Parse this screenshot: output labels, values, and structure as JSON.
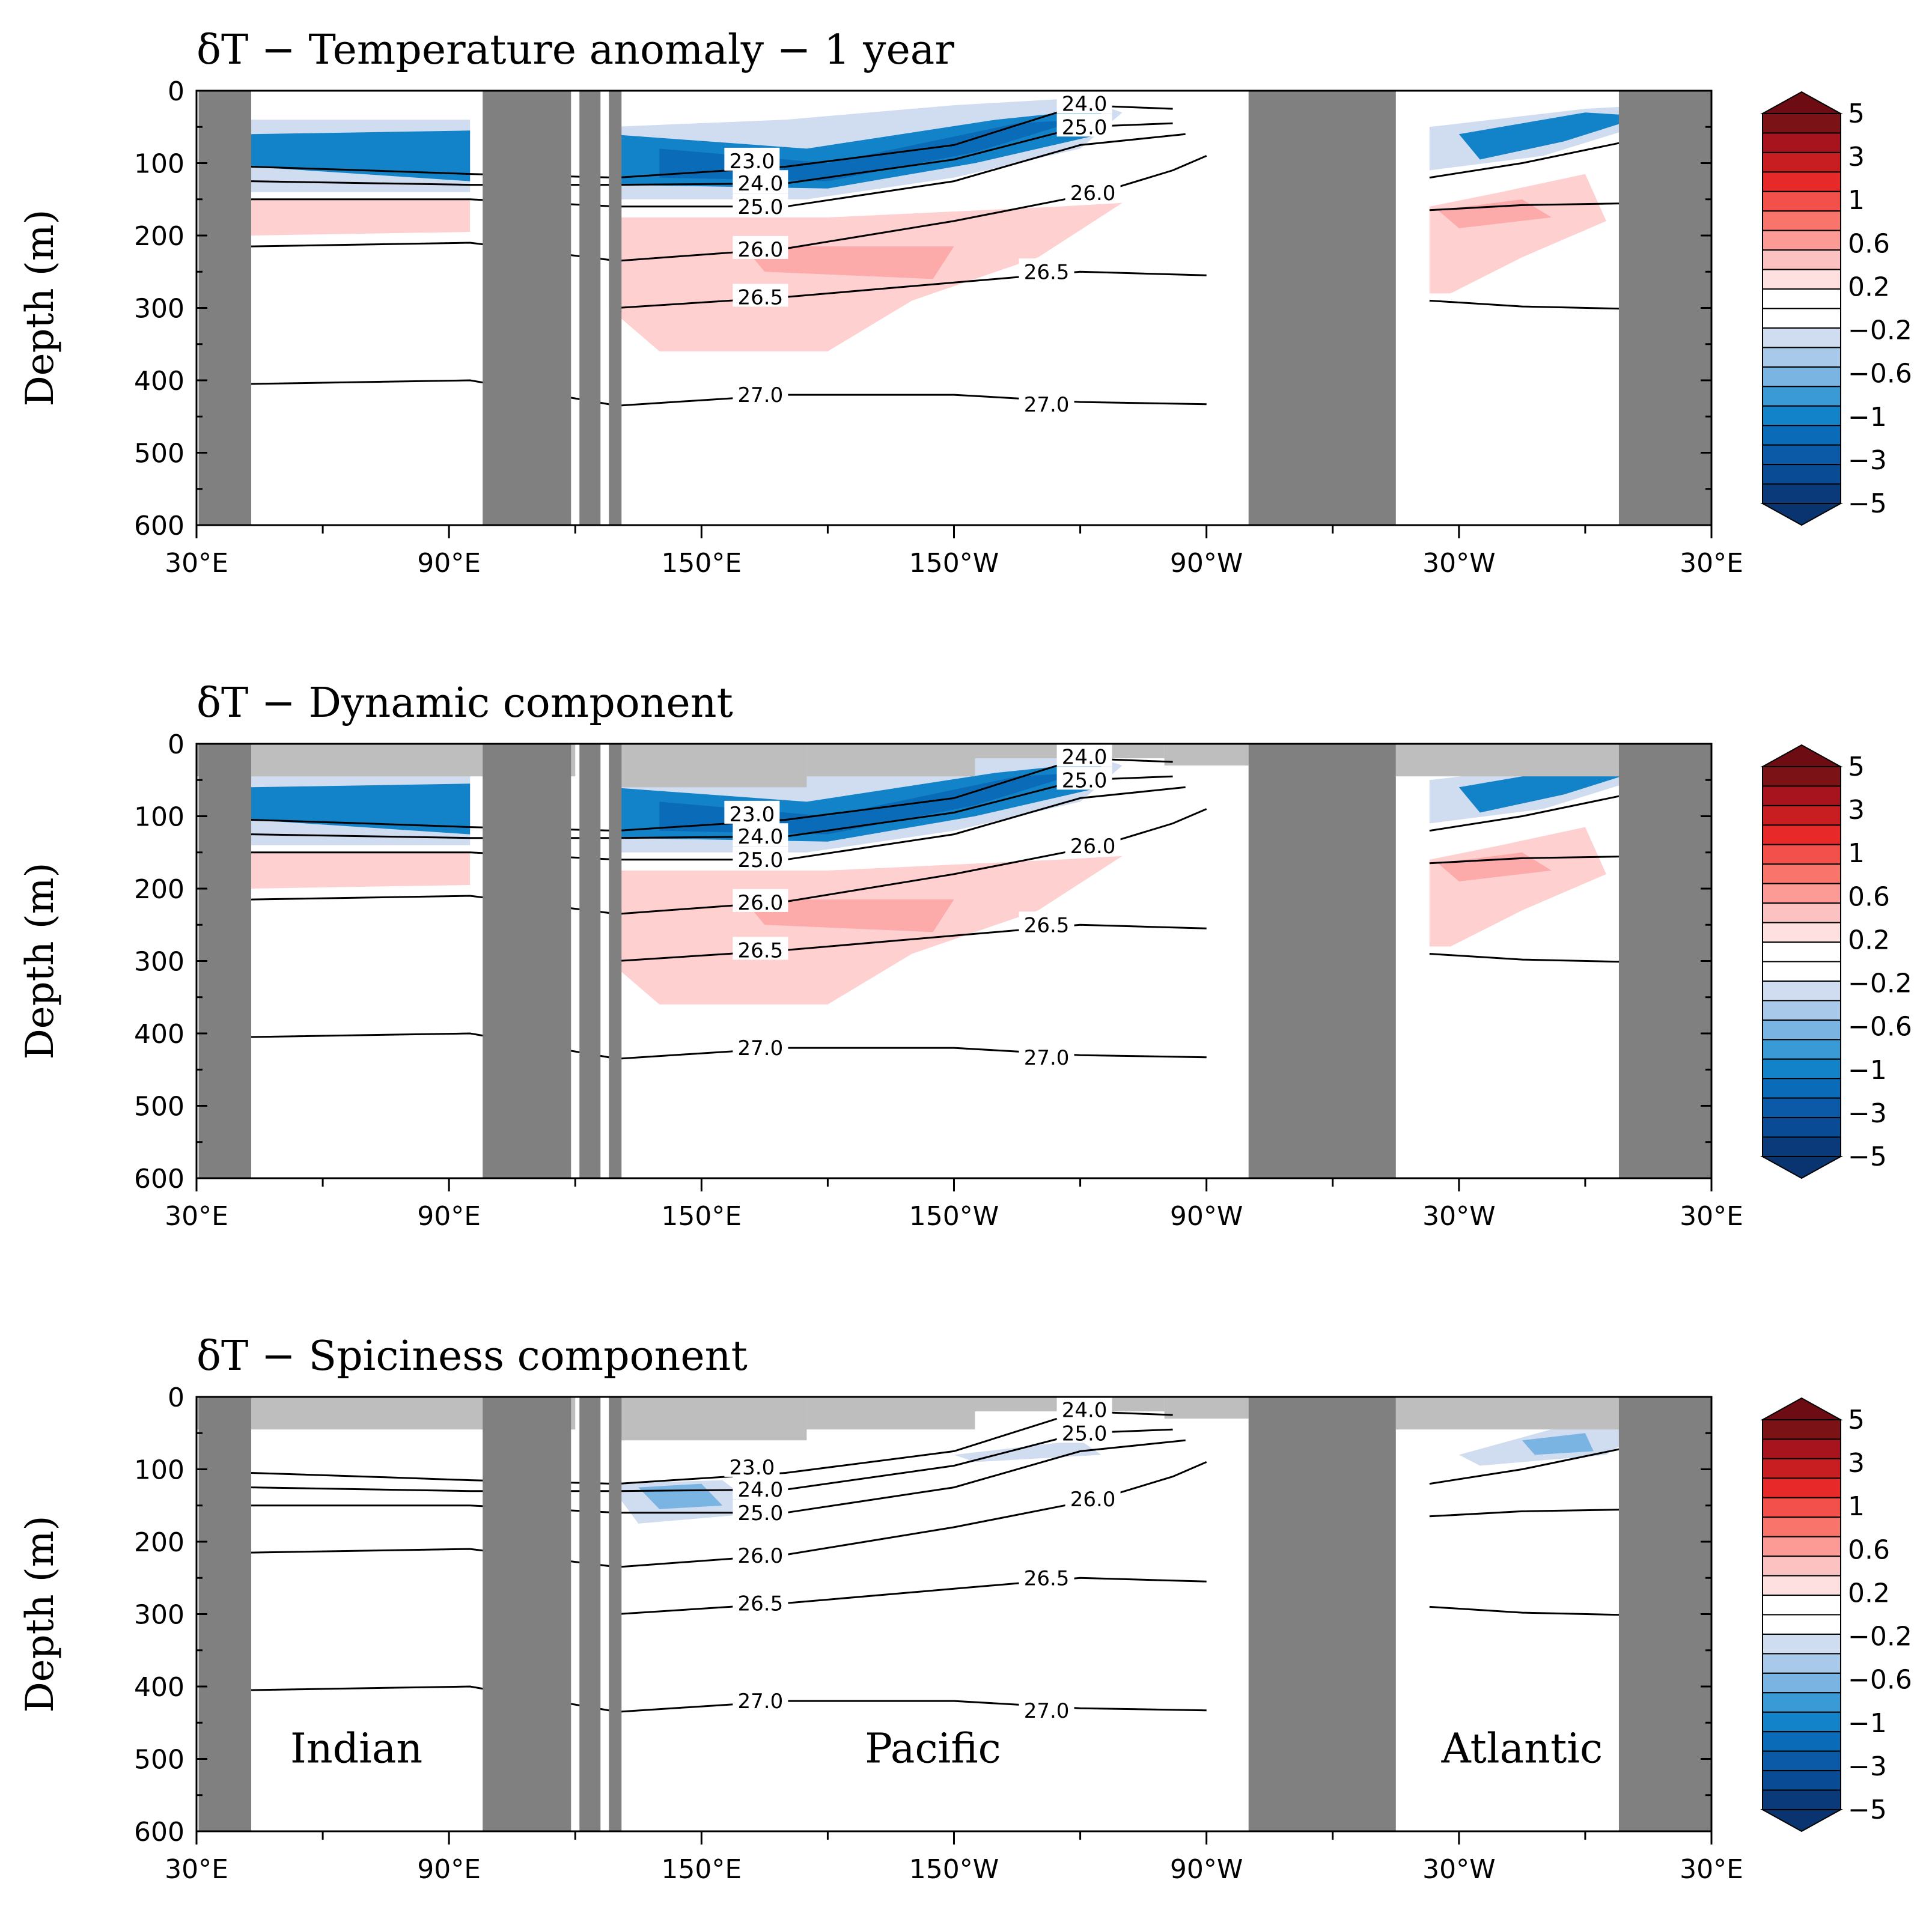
{
  "chart_data": {
    "type": "heatmap",
    "shared": {
      "ylabel": "Depth (m)",
      "y_ticks": [
        "0",
        "100",
        "200",
        "300",
        "400",
        "500",
        "600"
      ],
      "y_values": [
        0,
        100,
        200,
        300,
        400,
        500,
        600
      ],
      "ylim": [
        600,
        0
      ],
      "x_ticks": [
        "30°E",
        "90°E",
        "150°E",
        "150°W",
        "90°W",
        "30°W",
        "30°E"
      ],
      "x_values": [
        30,
        90,
        150,
        210,
        270,
        330,
        390
      ],
      "xlim": [
        30,
        390
      ],
      "colorbar": {
        "labels": [
          "5",
          "3",
          "1",
          "0.6",
          "0.2",
          "−0.2",
          "−0.6",
          "−1",
          "−3",
          "−5"
        ],
        "colors": [
          "#7a1216",
          "#a8141e",
          "#c81e22",
          "#e8292a",
          "#f4504b",
          "#f9756b",
          "#fc9a95",
          "#fbc2c1",
          "#ffe0e0",
          "#ffffff",
          "#ffffff",
          "#d0dcf0",
          "#a9c9ea",
          "#79b4e2",
          "#3a9ad6",
          "#1283c8",
          "#0a6cb8",
          "#0a5aa8",
          "#094b94",
          "#0b3a7a"
        ],
        "top_arrow_color": "#6e0c14",
        "bottom_arrow_color": "#0a3470"
      },
      "land_color": "#808080",
      "shallow_mask_color": "#bebebe",
      "contour_levels": [
        23.0,
        24.0,
        25.0,
        26.0,
        26.5,
        27.0
      ]
    },
    "panels": [
      {
        "title": "δT − Temperature anomaly − 1 year",
        "show_upper_mask": false,
        "contour_labels": [
          {
            "text": "23.0",
            "x": 162,
            "y": 97
          },
          {
            "text": "24.0",
            "x": 164,
            "y": 128
          },
          {
            "text": "24.0",
            "x": 241,
            "y": 18
          },
          {
            "text": "25.0",
            "x": 164,
            "y": 160
          },
          {
            "text": "25.0",
            "x": 241,
            "y": 50
          },
          {
            "text": "26.0",
            "x": 164,
            "y": 219
          },
          {
            "text": "26.0",
            "x": 243,
            "y": 141
          },
          {
            "text": "26.5",
            "x": 164,
            "y": 285
          },
          {
            "text": "26.5",
            "x": 232,
            "y": 250
          },
          {
            "text": "27.0",
            "x": 164,
            "y": 420
          },
          {
            "text": "27.0",
            "x": 232,
            "y": 433
          }
        ],
        "basin_labels": []
      },
      {
        "title": "δT − Dynamic component",
        "show_upper_mask": true,
        "contour_labels": [
          {
            "text": "23.0",
            "x": 162,
            "y": 97
          },
          {
            "text": "24.0",
            "x": 164,
            "y": 128
          },
          {
            "text": "24.0",
            "x": 241,
            "y": 18
          },
          {
            "text": "25.0",
            "x": 164,
            "y": 160
          },
          {
            "text": "25.0",
            "x": 241,
            "y": 50
          },
          {
            "text": "26.0",
            "x": 164,
            "y": 219
          },
          {
            "text": "26.0",
            "x": 243,
            "y": 141
          },
          {
            "text": "26.5",
            "x": 164,
            "y": 285
          },
          {
            "text": "26.5",
            "x": 232,
            "y": 250
          },
          {
            "text": "27.0",
            "x": 164,
            "y": 420
          },
          {
            "text": "27.0",
            "x": 232,
            "y": 433
          }
        ],
        "basin_labels": []
      },
      {
        "title": "δT − Spiciness component",
        "show_upper_mask": true,
        "contour_labels": [
          {
            "text": "23.0",
            "x": 162,
            "y": 97
          },
          {
            "text": "24.0",
            "x": 164,
            "y": 128
          },
          {
            "text": "24.0",
            "x": 241,
            "y": 18
          },
          {
            "text": "25.0",
            "x": 164,
            "y": 160
          },
          {
            "text": "25.0",
            "x": 241,
            "y": 50
          },
          {
            "text": "26.0",
            "x": 164,
            "y": 219
          },
          {
            "text": "26.0",
            "x": 243,
            "y": 141
          },
          {
            "text": "26.5",
            "x": 164,
            "y": 285
          },
          {
            "text": "26.5",
            "x": 232,
            "y": 250
          },
          {
            "text": "27.0",
            "x": 164,
            "y": 420
          },
          {
            "text": "27.0",
            "x": 232,
            "y": 433
          }
        ],
        "basin_labels": [
          {
            "text": "Indian",
            "x": 68,
            "y": 505
          },
          {
            "text": "Pacific",
            "x": 205,
            "y": 505
          },
          {
            "text": "Atlantic",
            "x": 345,
            "y": 505
          }
        ]
      }
    ]
  }
}
